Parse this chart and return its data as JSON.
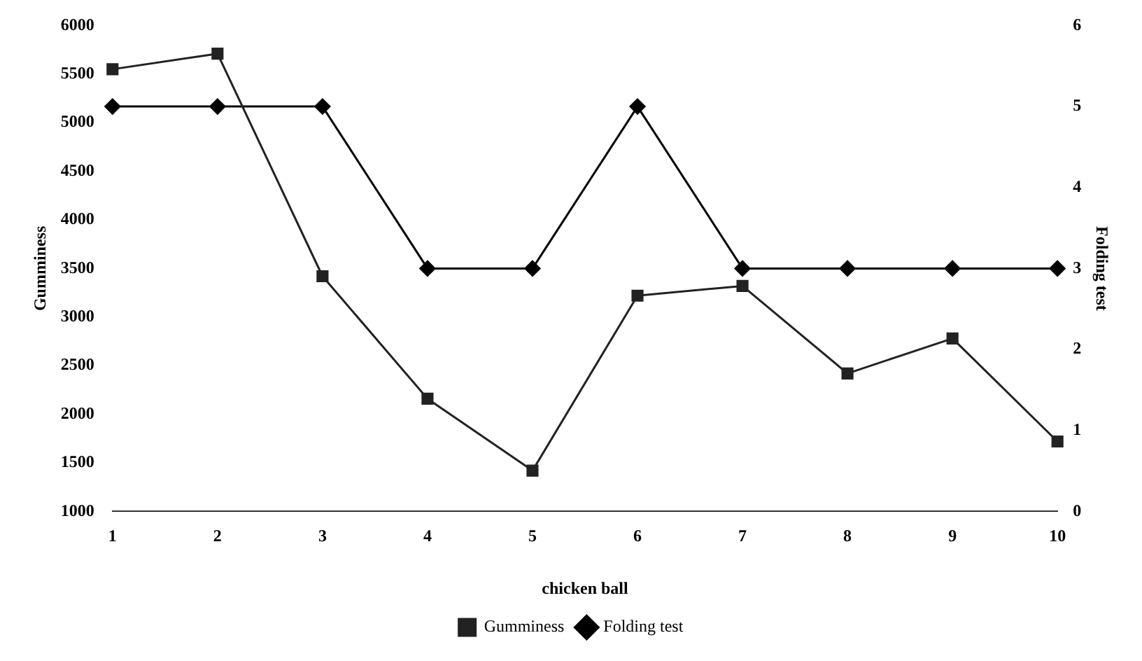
{
  "chart_data": {
    "type": "line",
    "xlabel": "chicken ball",
    "ylabel": "Gumminess",
    "y2label": "Folding test",
    "categories": [
      "1",
      "2",
      "3",
      "4",
      "5",
      "6",
      "7",
      "8",
      "9",
      "10"
    ],
    "series": [
      {
        "name": "Gumminess",
        "color": "#222222",
        "marker": "square",
        "values": [
          5550,
          5710,
          3420,
          2160,
          1420,
          3220,
          3320,
          2420,
          2780,
          1720
        ]
      },
      {
        "name": "Folding test",
        "color": "#000000",
        "marker": "diamond",
        "axis": "y2",
        "values": [
          5,
          5,
          5,
          3,
          3,
          5,
          3,
          3,
          3,
          3
        ]
      }
    ],
    "ylim": [
      1000,
      6000
    ],
    "yticks": [
      1000,
      1500,
      2000,
      2500,
      3000,
      3500,
      4000,
      4500,
      5000,
      5500,
      6000
    ],
    "y2lim": [
      0,
      6
    ],
    "y2ticks": [
      0,
      1,
      2,
      3,
      4,
      5,
      6
    ],
    "grid": false,
    "legend": "bottom",
    "line_style": "solid"
  }
}
